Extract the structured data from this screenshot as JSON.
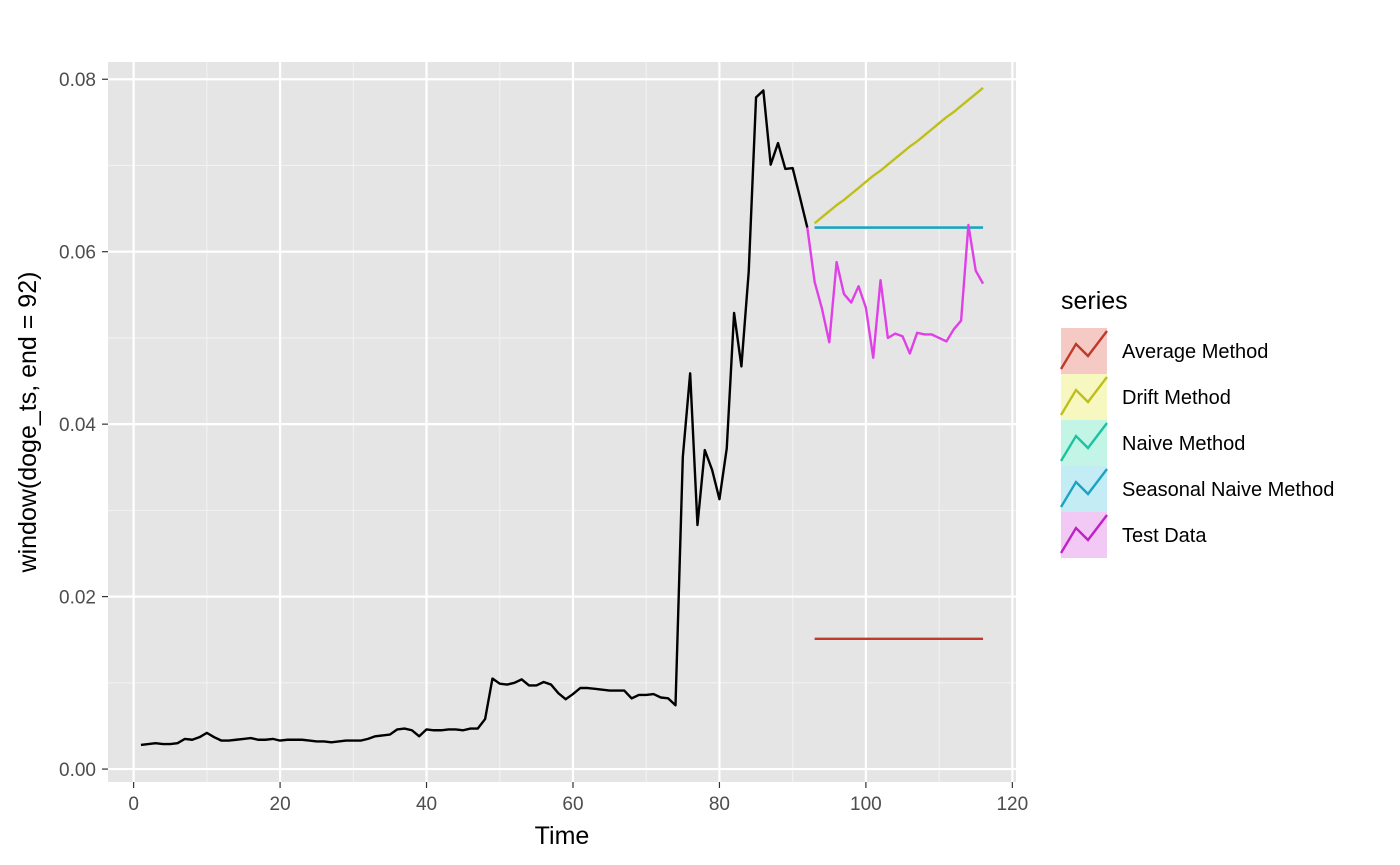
{
  "chart_data": {
    "type": "line",
    "xlabel": "Time",
    "ylabel": "window(doge_ts, end = 92)",
    "xlim": [
      -3.5,
      120.5
    ],
    "ylim": [
      -0.0015,
      0.082
    ],
    "x_ticks": [
      0,
      20,
      40,
      60,
      80,
      100,
      120
    ],
    "x_tick_labels": [
      "0",
      "20",
      "40",
      "60",
      "80",
      "100",
      "120"
    ],
    "y_ticks": [
      0,
      0.02,
      0.04,
      0.06,
      0.08
    ],
    "y_tick_labels": [
      "0.00",
      "0.02",
      "0.04",
      "0.06",
      "0.08"
    ],
    "grid": true,
    "legend_position": "right",
    "legend_title": "series",
    "observed": {
      "color": "#000000",
      "x": [
        1,
        2,
        3,
        4,
        5,
        6,
        7,
        8,
        9,
        10,
        11,
        12,
        13,
        14,
        15,
        16,
        17,
        18,
        19,
        20,
        21,
        22,
        23,
        24,
        25,
        26,
        27,
        28,
        29,
        30,
        31,
        32,
        33,
        34,
        35,
        36,
        37,
        38,
        39,
        40,
        41,
        42,
        43,
        44,
        45,
        46,
        47,
        48,
        49,
        50,
        51,
        52,
        53,
        54,
        55,
        56,
        57,
        58,
        59,
        60,
        61,
        62,
        63,
        64,
        65,
        66,
        67,
        68,
        69,
        70,
        71,
        72,
        73,
        74,
        75,
        76,
        77,
        78,
        79,
        80,
        81,
        82,
        83,
        84,
        85,
        86,
        87,
        88,
        89,
        90,
        91,
        92
      ],
      "y": [
        0.0028,
        0.0029,
        0.003,
        0.0029,
        0.0029,
        0.003,
        0.0035,
        0.0034,
        0.0037,
        0.0042,
        0.0037,
        0.0033,
        0.0033,
        0.0034,
        0.0035,
        0.0036,
        0.0034,
        0.0034,
        0.0035,
        0.0033,
        0.0034,
        0.0034,
        0.0034,
        0.0033,
        0.0032,
        0.0032,
        0.0031,
        0.0032,
        0.0033,
        0.0033,
        0.0033,
        0.0035,
        0.0038,
        0.0039,
        0.004,
        0.0046,
        0.0047,
        0.0045,
        0.0038,
        0.0046,
        0.0045,
        0.0045,
        0.0046,
        0.0046,
        0.0045,
        0.0047,
        0.0047,
        0.0058,
        0.0105,
        0.0099,
        0.0098,
        0.01,
        0.0104,
        0.0097,
        0.0097,
        0.0101,
        0.0098,
        0.0088,
        0.0081,
        0.0087,
        0.0094,
        0.0094,
        0.0093,
        0.0092,
        0.0091,
        0.0091,
        0.0091,
        0.0082,
        0.0086,
        0.0086,
        0.0087,
        0.0083,
        0.0082,
        0.0074,
        0.0362,
        0.0459,
        0.0283,
        0.037,
        0.0347,
        0.0313,
        0.0372,
        0.0529,
        0.0467,
        0.0577,
        0.0779,
        0.0787,
        0.0701,
        0.0726,
        0.0696,
        0.0697,
        0.0663,
        0.0628
      ]
    },
    "series": [
      {
        "name": "Average Method",
        "color": "#c0392b",
        "x": [
          93,
          94,
          95,
          96,
          97,
          98,
          99,
          100,
          101,
          102,
          103,
          104,
          105,
          106,
          107,
          108,
          109,
          110,
          111,
          112,
          113,
          114,
          115,
          116
        ],
        "values": [
          0.0151,
          0.0151,
          0.0151,
          0.0151,
          0.0151,
          0.0151,
          0.0151,
          0.0151,
          0.0151,
          0.0151,
          0.0151,
          0.0151,
          0.0151,
          0.0151,
          0.0151,
          0.0151,
          0.0151,
          0.0151,
          0.0151,
          0.0151,
          0.0151,
          0.0151,
          0.0151,
          0.0151
        ]
      },
      {
        "name": "Drift Method",
        "color": "#bfbf1a",
        "x": [
          93,
          94,
          95,
          96,
          97,
          98,
          99,
          100,
          101,
          102,
          103,
          104,
          105,
          106,
          107,
          108,
          109,
          110,
          111,
          112,
          113,
          114,
          115,
          116
        ],
        "values": [
          0.0633,
          0.064,
          0.0647,
          0.0654,
          0.066,
          0.0667,
          0.0674,
          0.0681,
          0.0688,
          0.0694,
          0.0701,
          0.0708,
          0.0715,
          0.0722,
          0.0728,
          0.0735,
          0.0742,
          0.0749,
          0.0756,
          0.0762,
          0.0769,
          0.0776,
          0.0783,
          0.079
        ]
      },
      {
        "name": "Naive Method",
        "color": "#19c4a0",
        "x": [
          93,
          94,
          95,
          96,
          97,
          98,
          99,
          100,
          101,
          102,
          103,
          104,
          105,
          106,
          107,
          108,
          109,
          110,
          111,
          112,
          113,
          114,
          115,
          116
        ],
        "values": [
          0.0628,
          0.0628,
          0.0628,
          0.0628,
          0.0628,
          0.0628,
          0.0628,
          0.0628,
          0.0628,
          0.0628,
          0.0628,
          0.0628,
          0.0628,
          0.0628,
          0.0628,
          0.0628,
          0.0628,
          0.0628,
          0.0628,
          0.0628,
          0.0628,
          0.0628,
          0.0628,
          0.0628
        ]
      },
      {
        "name": "Seasonal Naive Method",
        "color": "#1aa3c4",
        "x": [
          93,
          94,
          95,
          96,
          97,
          98,
          99,
          100,
          101,
          102,
          103,
          104,
          105,
          106,
          107,
          108,
          109,
          110,
          111,
          112,
          113,
          114,
          115,
          116
        ],
        "values": [
          0.0628,
          0.0628,
          0.0628,
          0.0628,
          0.0628,
          0.0628,
          0.0628,
          0.0628,
          0.0628,
          0.0628,
          0.0628,
          0.0628,
          0.0628,
          0.0628,
          0.0628,
          0.0628,
          0.0628,
          0.0628,
          0.0628,
          0.0628,
          0.0628,
          0.0628,
          0.0628,
          0.0628
        ]
      },
      {
        "name": "Test Data",
        "color": "#e040e8",
        "x": [
          92,
          93,
          94,
          95,
          96,
          97,
          98,
          99,
          100,
          101,
          102,
          103,
          104,
          105,
          106,
          107,
          108,
          109,
          110,
          111,
          112,
          113,
          114,
          115,
          116
        ],
        "values": [
          0.0628,
          0.0565,
          0.0534,
          0.0495,
          0.0588,
          0.0551,
          0.0541,
          0.056,
          0.0535,
          0.0477,
          0.0567,
          0.05,
          0.0505,
          0.0502,
          0.0482,
          0.0506,
          0.0504,
          0.0504,
          0.05,
          0.0496,
          0.051,
          0.052,
          0.0631,
          0.0578,
          0.0563
        ]
      }
    ],
    "legend_entries": [
      {
        "label": "Average Method",
        "line_color": "#c0392b",
        "key_fill": "#f5cac5"
      },
      {
        "label": "Drift Method",
        "line_color": "#bfbf1a",
        "key_fill": "#f7f7c0"
      },
      {
        "label": "Naive Method",
        "line_color": "#19c4a0",
        "key_fill": "#c2f5e6"
      },
      {
        "label": "Seasonal Naive Method",
        "line_color": "#1aa3c4",
        "key_fill": "#c4ecf5"
      },
      {
        "label": "Test Data",
        "line_color": "#c020c8",
        "key_fill": "#f2c8f5"
      }
    ]
  }
}
